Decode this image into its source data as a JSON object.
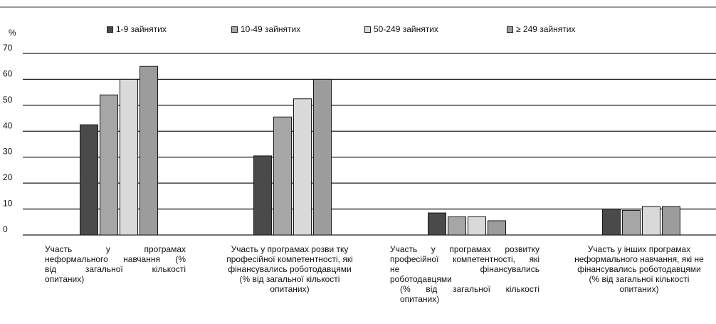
{
  "chart_data": {
    "type": "bar",
    "unit_label": "%",
    "ylim": [
      0,
      70
    ],
    "yticks": [
      0,
      10,
      20,
      30,
      40,
      50,
      60,
      70
    ],
    "grid": true,
    "legend_position": "top",
    "categories": [
      "Участь у програмах неформального навчання (% від загальної кількості опитаних)",
      "Участь у програмах розви тку професійної компетентності, які фінансувались роботодавцями (% від загальної кількості опитаних)",
      "Участь у програмах розвитку професійної компетентності, які не фінансувались роботодавцями (% від загальної кількості опитаних)",
      "Участь у інших програмах неформального навчання, які не фінансувались роботодавцями (% від загальної кількості опитаних)"
    ],
    "category_lines": [
      [
        "Участь у програмах",
        "неформального навчання (%",
        "від загальної кількості",
        "опитаних)"
      ],
      [
        "Участь у програмах розви тку",
        "професійної компетентності, які",
        "фінансувались роботодавцями",
        "(% від загальної кількості",
        "опитаних)"
      ],
      [
        "Участь у програмах розвитку",
        "професійної компетентності, які",
        "не фінансувались",
        "роботодавцями",
        "(% від загальної кількості",
        "опитаних)"
      ],
      [
        "Участь у інших програмах",
        "неформального навчання, які не",
        "фінансувались роботодавцями",
        "(% від загальної кількості",
        "опитаних)"
      ]
    ],
    "series": [
      {
        "name": "1-9 зайнятих",
        "color": "#4a4a4a",
        "values": [
          42.5,
          30.5,
          8.5,
          10
        ]
      },
      {
        "name": "10-49 зайнятих",
        "color": "#a6a6a6",
        "values": [
          54,
          45.5,
          7,
          9.5
        ]
      },
      {
        "name": "50-249 зайнятих",
        "color": "#d9d9d9",
        "values": [
          60,
          52.5,
          7,
          11
        ]
      },
      {
        "name": "≥ 249 зайнятих",
        "color": "#9c9c9c",
        "values": [
          65,
          60,
          5.5,
          11
        ]
      }
    ]
  }
}
